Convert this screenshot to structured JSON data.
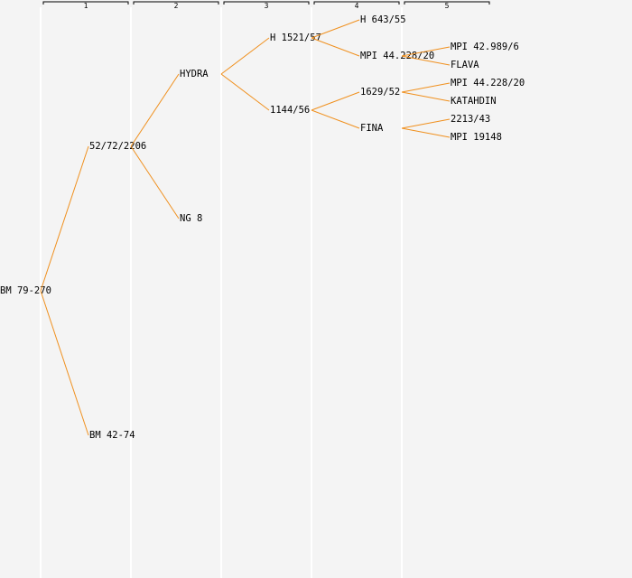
{
  "columns": [
    "1",
    "2",
    "3",
    "4",
    "5"
  ],
  "tree": {
    "label": "BM 79-270",
    "children": [
      {
        "label": "52/72/2206",
        "children": [
          {
            "label": "HYDRA",
            "children": [
              {
                "label": "H 1521/57",
                "children": [
                  {
                    "label": "H 643/55"
                  },
                  {
                    "label": "MPI 44.228/20",
                    "children": [
                      {
                        "label": "MPI 42.989/6"
                      },
                      {
                        "label": "FLAVA"
                      }
                    ]
                  }
                ]
              },
              {
                "label": "1144/56",
                "children": [
                  {
                    "label": "1629/52",
                    "children": [
                      {
                        "label": "MPI 44.228/20"
                      },
                      {
                        "label": "KATAHDIN"
                      }
                    ]
                  },
                  {
                    "label": "FINA",
                    "children": [
                      {
                        "label": "2213/43"
                      },
                      {
                        "label": "MPI 19148"
                      }
                    ]
                  }
                ]
              }
            ]
          },
          {
            "label": "NG 8"
          }
        ]
      },
      {
        "label": "BM 42-74"
      }
    ]
  }
}
